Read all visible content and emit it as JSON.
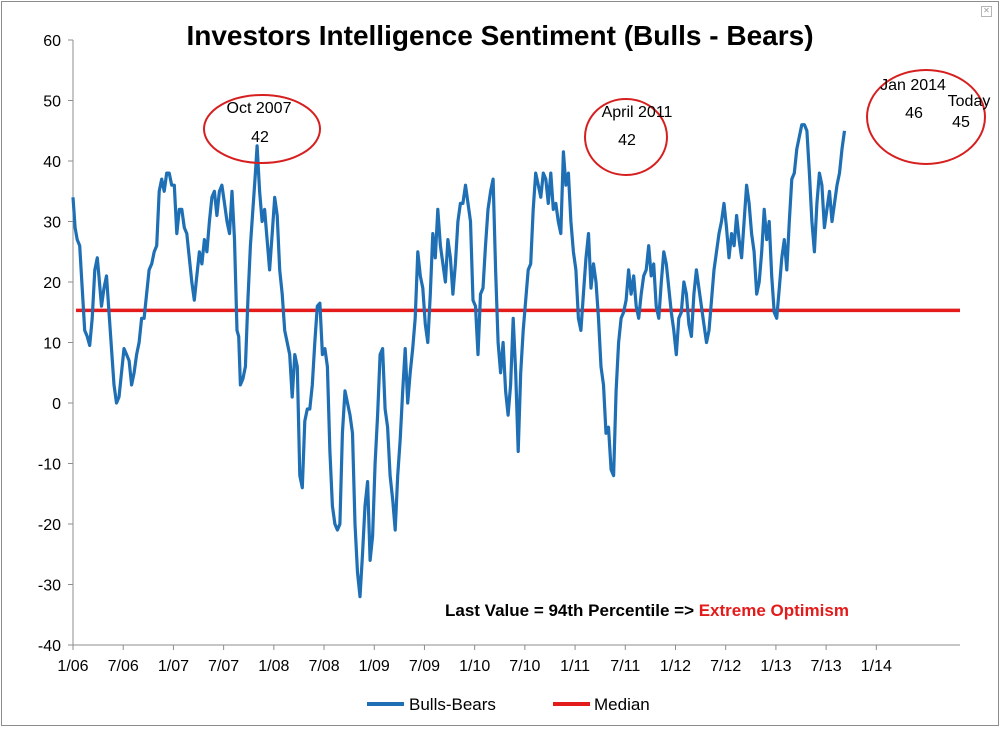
{
  "chart_data": {
    "type": "line",
    "title": "Investors Intelligence Sentiment (Bulls - Bears)",
    "ylim": [
      -40,
      60
    ],
    "y_ticks": [
      -40,
      -30,
      -20,
      -10,
      0,
      10,
      20,
      30,
      40,
      50,
      60
    ],
    "x_tick_labels": [
      "1/06",
      "7/06",
      "1/07",
      "7/07",
      "1/08",
      "7/08",
      "1/09",
      "7/09",
      "1/10",
      "7/10",
      "1/11",
      "7/11",
      "1/12",
      "7/12",
      "1/13",
      "7/13",
      "1/14"
    ],
    "x_range_months": [
      0,
      106
    ],
    "grid": false,
    "series": [
      {
        "name": "Bulls-Bears",
        "color": "#1f6fb5",
        "points": [
          [
            0.0,
            34
          ],
          [
            0.25,
            29
          ],
          [
            0.5,
            27
          ],
          [
            0.8,
            26
          ],
          [
            1.1,
            19
          ],
          [
            1.4,
            12
          ],
          [
            1.7,
            11
          ],
          [
            2.0,
            9.5
          ],
          [
            2.3,
            14
          ],
          [
            2.6,
            22
          ],
          [
            2.9,
            24
          ],
          [
            3.1,
            21
          ],
          [
            3.4,
            16
          ],
          [
            3.7,
            19
          ],
          [
            4.0,
            21
          ],
          [
            4.3,
            15
          ],
          [
            4.6,
            9
          ],
          [
            4.9,
            3
          ],
          [
            5.2,
            0
          ],
          [
            5.5,
            1
          ],
          [
            5.8,
            5
          ],
          [
            6.1,
            9
          ],
          [
            6.4,
            8
          ],
          [
            6.7,
            7
          ],
          [
            7.0,
            3
          ],
          [
            7.3,
            5
          ],
          [
            7.6,
            8
          ],
          [
            7.9,
            10
          ],
          [
            8.2,
            14
          ],
          [
            8.5,
            14
          ],
          [
            8.8,
            18
          ],
          [
            9.1,
            22
          ],
          [
            9.4,
            23
          ],
          [
            9.7,
            25
          ],
          [
            10.0,
            26
          ],
          [
            10.3,
            35
          ],
          [
            10.6,
            37
          ],
          [
            10.9,
            35
          ],
          [
            11.2,
            38
          ],
          [
            11.5,
            38
          ],
          [
            11.8,
            36
          ],
          [
            12.1,
            36
          ],
          [
            12.4,
            28
          ],
          [
            12.7,
            32
          ],
          [
            13.0,
            32
          ],
          [
            13.3,
            29
          ],
          [
            13.6,
            28
          ],
          [
            13.9,
            24
          ],
          [
            14.2,
            20
          ],
          [
            14.5,
            17
          ],
          [
            14.8,
            21
          ],
          [
            15.1,
            25
          ],
          [
            15.4,
            23
          ],
          [
            15.7,
            27
          ],
          [
            16.0,
            25
          ],
          [
            16.3,
            30
          ],
          [
            16.6,
            34
          ],
          [
            16.9,
            35
          ],
          [
            17.2,
            31
          ],
          [
            17.5,
            35
          ],
          [
            17.8,
            36
          ],
          [
            18.1,
            33
          ],
          [
            18.4,
            30
          ],
          [
            18.7,
            28
          ],
          [
            19.0,
            35
          ],
          [
            19.3,
            27
          ],
          [
            19.6,
            12
          ],
          [
            19.8,
            11
          ],
          [
            20.0,
            3
          ],
          [
            20.3,
            4
          ],
          [
            20.6,
            6
          ],
          [
            20.9,
            17
          ],
          [
            21.2,
            26
          ],
          [
            21.5,
            32
          ],
          [
            21.8,
            38
          ],
          [
            22.0,
            42.5
          ],
          [
            22.3,
            35
          ],
          [
            22.6,
            30
          ],
          [
            22.9,
            32
          ],
          [
            23.2,
            27
          ],
          [
            23.5,
            22
          ],
          [
            23.8,
            28
          ],
          [
            24.1,
            34
          ],
          [
            24.4,
            31
          ],
          [
            24.7,
            22
          ],
          [
            25.0,
            18
          ],
          [
            25.3,
            12
          ],
          [
            25.6,
            10
          ],
          [
            25.9,
            8
          ],
          [
            26.2,
            1
          ],
          [
            26.5,
            8
          ],
          [
            26.8,
            6
          ],
          [
            27.1,
            -12
          ],
          [
            27.4,
            -14
          ],
          [
            27.7,
            -3
          ],
          [
            28.0,
            -1
          ],
          [
            28.3,
            -1
          ],
          [
            28.6,
            3
          ],
          [
            28.9,
            10
          ],
          [
            29.2,
            16
          ],
          [
            29.5,
            16.5
          ],
          [
            29.8,
            8
          ],
          [
            30.1,
            9
          ],
          [
            30.4,
            6
          ],
          [
            30.7,
            -8
          ],
          [
            31.0,
            -17
          ],
          [
            31.3,
            -20
          ],
          [
            31.6,
            -21
          ],
          [
            31.9,
            -20
          ],
          [
            32.2,
            -5
          ],
          [
            32.5,
            2
          ],
          [
            32.8,
            0
          ],
          [
            33.1,
            -2
          ],
          [
            33.4,
            -5
          ],
          [
            33.7,
            -20
          ],
          [
            34.0,
            -28
          ],
          [
            34.3,
            -32
          ],
          [
            34.6,
            -25
          ],
          [
            34.9,
            -17
          ],
          [
            35.2,
            -13
          ],
          [
            35.5,
            -26
          ],
          [
            35.8,
            -22
          ],
          [
            36.1,
            -10
          ],
          [
            36.4,
            -2
          ],
          [
            36.7,
            8
          ],
          [
            37.0,
            9
          ],
          [
            37.3,
            -1
          ],
          [
            37.6,
            -4
          ],
          [
            37.9,
            -12
          ],
          [
            38.2,
            -16
          ],
          [
            38.5,
            -21
          ],
          [
            38.8,
            -12
          ],
          [
            39.1,
            -6
          ],
          [
            39.4,
            2
          ],
          [
            39.7,
            9
          ],
          [
            40.0,
            0
          ],
          [
            40.3,
            5
          ],
          [
            40.6,
            9
          ],
          [
            40.9,
            14
          ],
          [
            41.2,
            25
          ],
          [
            41.5,
            21
          ],
          [
            41.8,
            19
          ],
          [
            42.1,
            13
          ],
          [
            42.4,
            10
          ],
          [
            42.7,
            18
          ],
          [
            43.0,
            28
          ],
          [
            43.3,
            24
          ],
          [
            43.6,
            32
          ],
          [
            43.9,
            26
          ],
          [
            44.2,
            23
          ],
          [
            44.5,
            20
          ],
          [
            44.8,
            27
          ],
          [
            45.1,
            24
          ],
          [
            45.4,
            18
          ],
          [
            45.7,
            23
          ],
          [
            46.0,
            30
          ],
          [
            46.3,
            33
          ],
          [
            46.6,
            33
          ],
          [
            46.9,
            36
          ],
          [
            47.2,
            33
          ],
          [
            47.5,
            30
          ],
          [
            47.8,
            17
          ],
          [
            48.1,
            16
          ],
          [
            48.4,
            8
          ],
          [
            48.7,
            18
          ],
          [
            49.0,
            19
          ],
          [
            49.3,
            26
          ],
          [
            49.6,
            32
          ],
          [
            49.9,
            35
          ],
          [
            50.2,
            37
          ],
          [
            50.5,
            22
          ],
          [
            50.8,
            10
          ],
          [
            51.1,
            5
          ],
          [
            51.4,
            10
          ],
          [
            51.7,
            2
          ],
          [
            52.0,
            -2
          ],
          [
            52.3,
            3
          ],
          [
            52.6,
            14
          ],
          [
            52.9,
            5
          ],
          [
            53.2,
            -8
          ],
          [
            53.5,
            5
          ],
          [
            53.8,
            12
          ],
          [
            54.1,
            17
          ],
          [
            54.4,
            22
          ],
          [
            54.7,
            23
          ],
          [
            55.0,
            32
          ],
          [
            55.3,
            38
          ],
          [
            55.6,
            36
          ],
          [
            55.9,
            34
          ],
          [
            56.2,
            38
          ],
          [
            56.5,
            37
          ],
          [
            56.8,
            33
          ],
          [
            57.1,
            38
          ],
          [
            57.4,
            32
          ],
          [
            57.7,
            33
          ],
          [
            58.0,
            30
          ],
          [
            58.3,
            28
          ],
          [
            58.6,
            41.5
          ],
          [
            58.9,
            36
          ],
          [
            59.2,
            38
          ],
          [
            59.5,
            30
          ],
          [
            59.8,
            25
          ],
          [
            60.1,
            22
          ],
          [
            60.4,
            14
          ],
          [
            60.7,
            12
          ],
          [
            61.0,
            18
          ],
          [
            61.3,
            24
          ],
          [
            61.6,
            28
          ],
          [
            61.9,
            19
          ],
          [
            62.2,
            23
          ],
          [
            62.5,
            20
          ],
          [
            62.8,
            14
          ],
          [
            63.1,
            6
          ],
          [
            63.4,
            3
          ],
          [
            63.7,
            -5
          ],
          [
            64.0,
            -4
          ],
          [
            64.3,
            -11
          ],
          [
            64.6,
            -12
          ],
          [
            64.9,
            2
          ],
          [
            65.2,
            10
          ],
          [
            65.5,
            14
          ],
          [
            65.8,
            15
          ],
          [
            66.1,
            17
          ],
          [
            66.4,
            22
          ],
          [
            66.7,
            18
          ],
          [
            67.0,
            21
          ],
          [
            67.3,
            16
          ],
          [
            67.6,
            14
          ],
          [
            67.9,
            18
          ],
          [
            68.2,
            21
          ],
          [
            68.5,
            22
          ],
          [
            68.8,
            26
          ],
          [
            69.1,
            21
          ],
          [
            69.4,
            23
          ],
          [
            69.7,
            16
          ],
          [
            70.0,
            14
          ],
          [
            70.3,
            20
          ],
          [
            70.6,
            25
          ],
          [
            70.9,
            23
          ],
          [
            71.2,
            19
          ],
          [
            71.5,
            15
          ],
          [
            71.8,
            12
          ],
          [
            72.1,
            8
          ],
          [
            72.4,
            14
          ],
          [
            72.7,
            15
          ],
          [
            73.0,
            20
          ],
          [
            73.3,
            18
          ],
          [
            73.6,
            13
          ],
          [
            73.9,
            11
          ],
          [
            74.2,
            18
          ],
          [
            74.5,
            22
          ],
          [
            74.8,
            19
          ],
          [
            75.1,
            16
          ],
          [
            75.4,
            13
          ],
          [
            75.7,
            10
          ],
          [
            76.0,
            12
          ],
          [
            76.3,
            17
          ],
          [
            76.6,
            22
          ],
          [
            76.9,
            25
          ],
          [
            77.2,
            28
          ],
          [
            77.5,
            30
          ],
          [
            77.8,
            33
          ],
          [
            78.1,
            29
          ],
          [
            78.4,
            24
          ],
          [
            78.7,
            28
          ],
          [
            79.0,
            26
          ],
          [
            79.3,
            31
          ],
          [
            79.6,
            27
          ],
          [
            79.9,
            24
          ],
          [
            80.2,
            30
          ],
          [
            80.5,
            36
          ],
          [
            80.8,
            33
          ],
          [
            81.1,
            28
          ],
          [
            81.4,
            25
          ],
          [
            81.7,
            18
          ],
          [
            82.0,
            20
          ],
          [
            82.3,
            25
          ],
          [
            82.6,
            32
          ],
          [
            82.9,
            27
          ],
          [
            83.2,
            30
          ],
          [
            83.5,
            21
          ],
          [
            83.8,
            15
          ],
          [
            84.1,
            14
          ],
          [
            84.4,
            19
          ],
          [
            84.7,
            24
          ],
          [
            85.0,
            27
          ],
          [
            85.3,
            22
          ],
          [
            85.6,
            30
          ],
          [
            85.9,
            37
          ],
          [
            86.2,
            38
          ],
          [
            86.5,
            42
          ],
          [
            86.8,
            44
          ],
          [
            87.1,
            46
          ],
          [
            87.4,
            46
          ],
          [
            87.7,
            45
          ],
          [
            88.0,
            38
          ],
          [
            88.3,
            30
          ],
          [
            88.6,
            25
          ],
          [
            88.9,
            33
          ],
          [
            89.2,
            38
          ],
          [
            89.5,
            36
          ],
          [
            89.8,
            29
          ],
          [
            90.1,
            32
          ],
          [
            90.4,
            35
          ],
          [
            90.7,
            30
          ],
          [
            91.0,
            33
          ],
          [
            91.3,
            36
          ],
          [
            91.6,
            38
          ],
          [
            91.9,
            42
          ],
          [
            92.2,
            45
          ]
        ]
      },
      {
        "name": "Median",
        "color": "#e31b1b",
        "value": 15.3
      }
    ],
    "annotations": [
      {
        "label": "Oct 2007",
        "value": "42",
        "x_month": 22.0
      },
      {
        "label": "April 2011",
        "value": "42",
        "x_month": 58.6
      },
      {
        "label": "Jan 2014",
        "value": "46",
        "x_month": 87.0
      },
      {
        "label": "Today",
        "value": "45",
        "x_month": 92.2
      }
    ],
    "callout": {
      "prefix": "Last Value = 94th Percentile => ",
      "highlight": "Extreme Optimism",
      "prefix_color": "#000000",
      "highlight_color": "#e31b1b"
    },
    "legend": {
      "position": "bottom-center",
      "entries": [
        "Bulls-Bears",
        "Median"
      ]
    }
  }
}
